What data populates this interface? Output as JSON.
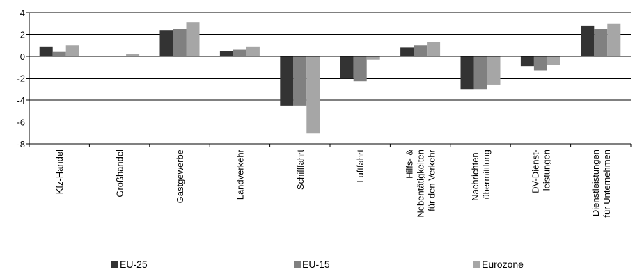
{
  "chart_data": {
    "type": "bar",
    "title": "",
    "xlabel": "",
    "ylabel": "",
    "ylim": [
      -8,
      4
    ],
    "yticks": [
      4,
      2,
      0,
      -2,
      -4,
      -6,
      -8
    ],
    "grid": "horizontal",
    "legend_position": "bottom",
    "categories": [
      [
        "Kfz-Handel"
      ],
      [
        "Großhandel"
      ],
      [
        "Gastgewerbe"
      ],
      [
        "Landverkehr"
      ],
      [
        "Schifffahrt"
      ],
      [
        "Luftfahrt"
      ],
      [
        "Hilfs- &",
        "Nebentätigkeiten",
        "für den Verkehr"
      ],
      [
        "Nachrichten-",
        "übermittlung"
      ],
      [
        "DV-Dienst-",
        "leistungen"
      ],
      [
        "Dienstleistungen",
        "für Unternehmen"
      ]
    ],
    "series": [
      {
        "name": "EU-25",
        "color": "#333333",
        "values": [
          0.9,
          0.05,
          2.4,
          0.5,
          -4.5,
          -2.0,
          0.8,
          -3.0,
          -0.9,
          2.8
        ]
      },
      {
        "name": "EU-15",
        "color": "#808080",
        "values": [
          0.4,
          0.05,
          2.5,
          0.6,
          -4.5,
          -2.3,
          1.0,
          -3.0,
          -1.3,
          2.5
        ]
      },
      {
        "name": "Eurozone",
        "color": "#a6a6a6",
        "values": [
          1.0,
          0.2,
          3.1,
          0.9,
          -7.0,
          -0.3,
          1.3,
          -2.6,
          -0.8,
          3.0
        ]
      }
    ]
  }
}
